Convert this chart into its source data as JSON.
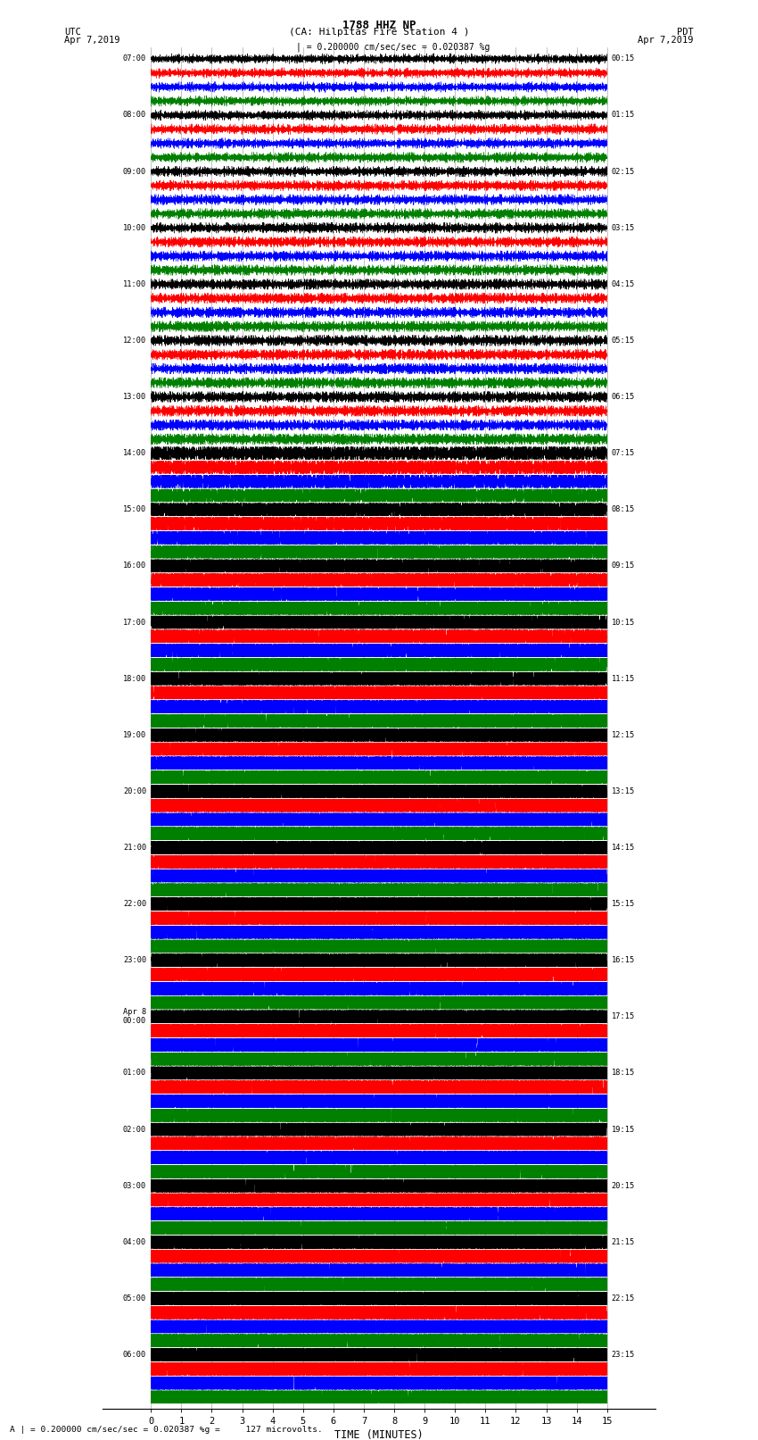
{
  "title_line1": "1788 HHZ NP",
  "title_line2": "(CA: Hilpitas Fire Station 4 )",
  "left_label": "UTC",
  "right_label": "PDT",
  "left_date": "Apr 7,2019",
  "right_date": "Apr 7,2019",
  "xlabel": "TIME (MINUTES)",
  "scale_top_text": "| = 0.200000 cm/sec/sec = 0.020387 %g",
  "scale_bot_text": "A | = 0.200000 cm/sec/sec = 0.020387 %g =     127 microvolts.",
  "x_min": 0,
  "x_max": 15,
  "x_ticks": [
    0,
    1,
    2,
    3,
    4,
    5,
    6,
    7,
    8,
    9,
    10,
    11,
    12,
    13,
    14,
    15
  ],
  "colors_cycle": [
    "black",
    "red",
    "blue",
    "green"
  ],
  "num_rows": 96,
  "background_color": "white",
  "grid_color": "#aaaaaa",
  "left_time_labels": [
    "07:00",
    "",
    "",
    "",
    "08:00",
    "",
    "",
    "",
    "09:00",
    "",
    "",
    "",
    "10:00",
    "",
    "",
    "",
    "11:00",
    "",
    "",
    "",
    "12:00",
    "",
    "",
    "",
    "13:00",
    "",
    "",
    "",
    "14:00",
    "",
    "",
    "",
    "15:00",
    "",
    "",
    "",
    "16:00",
    "",
    "",
    "",
    "17:00",
    "",
    "",
    "",
    "18:00",
    "",
    "",
    "",
    "19:00",
    "",
    "",
    "",
    "20:00",
    "",
    "",
    "",
    "21:00",
    "",
    "",
    "",
    "22:00",
    "",
    "",
    "",
    "23:00",
    "",
    "",
    "",
    "Apr 8\n00:00",
    "",
    "",
    "",
    "01:00",
    "",
    "",
    "",
    "02:00",
    "",
    "",
    "",
    "03:00",
    "",
    "",
    "",
    "04:00",
    "",
    "",
    "",
    "05:00",
    "",
    "",
    "",
    "06:00",
    "",
    "",
    ""
  ],
  "right_time_labels": [
    "00:15",
    "",
    "",
    "",
    "01:15",
    "",
    "",
    "",
    "02:15",
    "",
    "",
    "",
    "03:15",
    "",
    "",
    "",
    "04:15",
    "",
    "",
    "",
    "05:15",
    "",
    "",
    "",
    "06:15",
    "",
    "",
    "",
    "07:15",
    "",
    "",
    "",
    "08:15",
    "",
    "",
    "",
    "09:15",
    "",
    "",
    "",
    "10:15",
    "",
    "",
    "",
    "11:15",
    "",
    "",
    "",
    "12:15",
    "",
    "",
    "",
    "13:15",
    "",
    "",
    "",
    "14:15",
    "",
    "",
    "",
    "15:15",
    "",
    "",
    "",
    "16:15",
    "",
    "",
    "",
    "17:15",
    "",
    "",
    "",
    "18:15",
    "",
    "",
    "",
    "19:15",
    "",
    "",
    "",
    "20:15",
    "",
    "",
    "",
    "21:15",
    "",
    "",
    "",
    "22:15",
    "",
    "",
    "",
    "23:15",
    "",
    "",
    ""
  ]
}
